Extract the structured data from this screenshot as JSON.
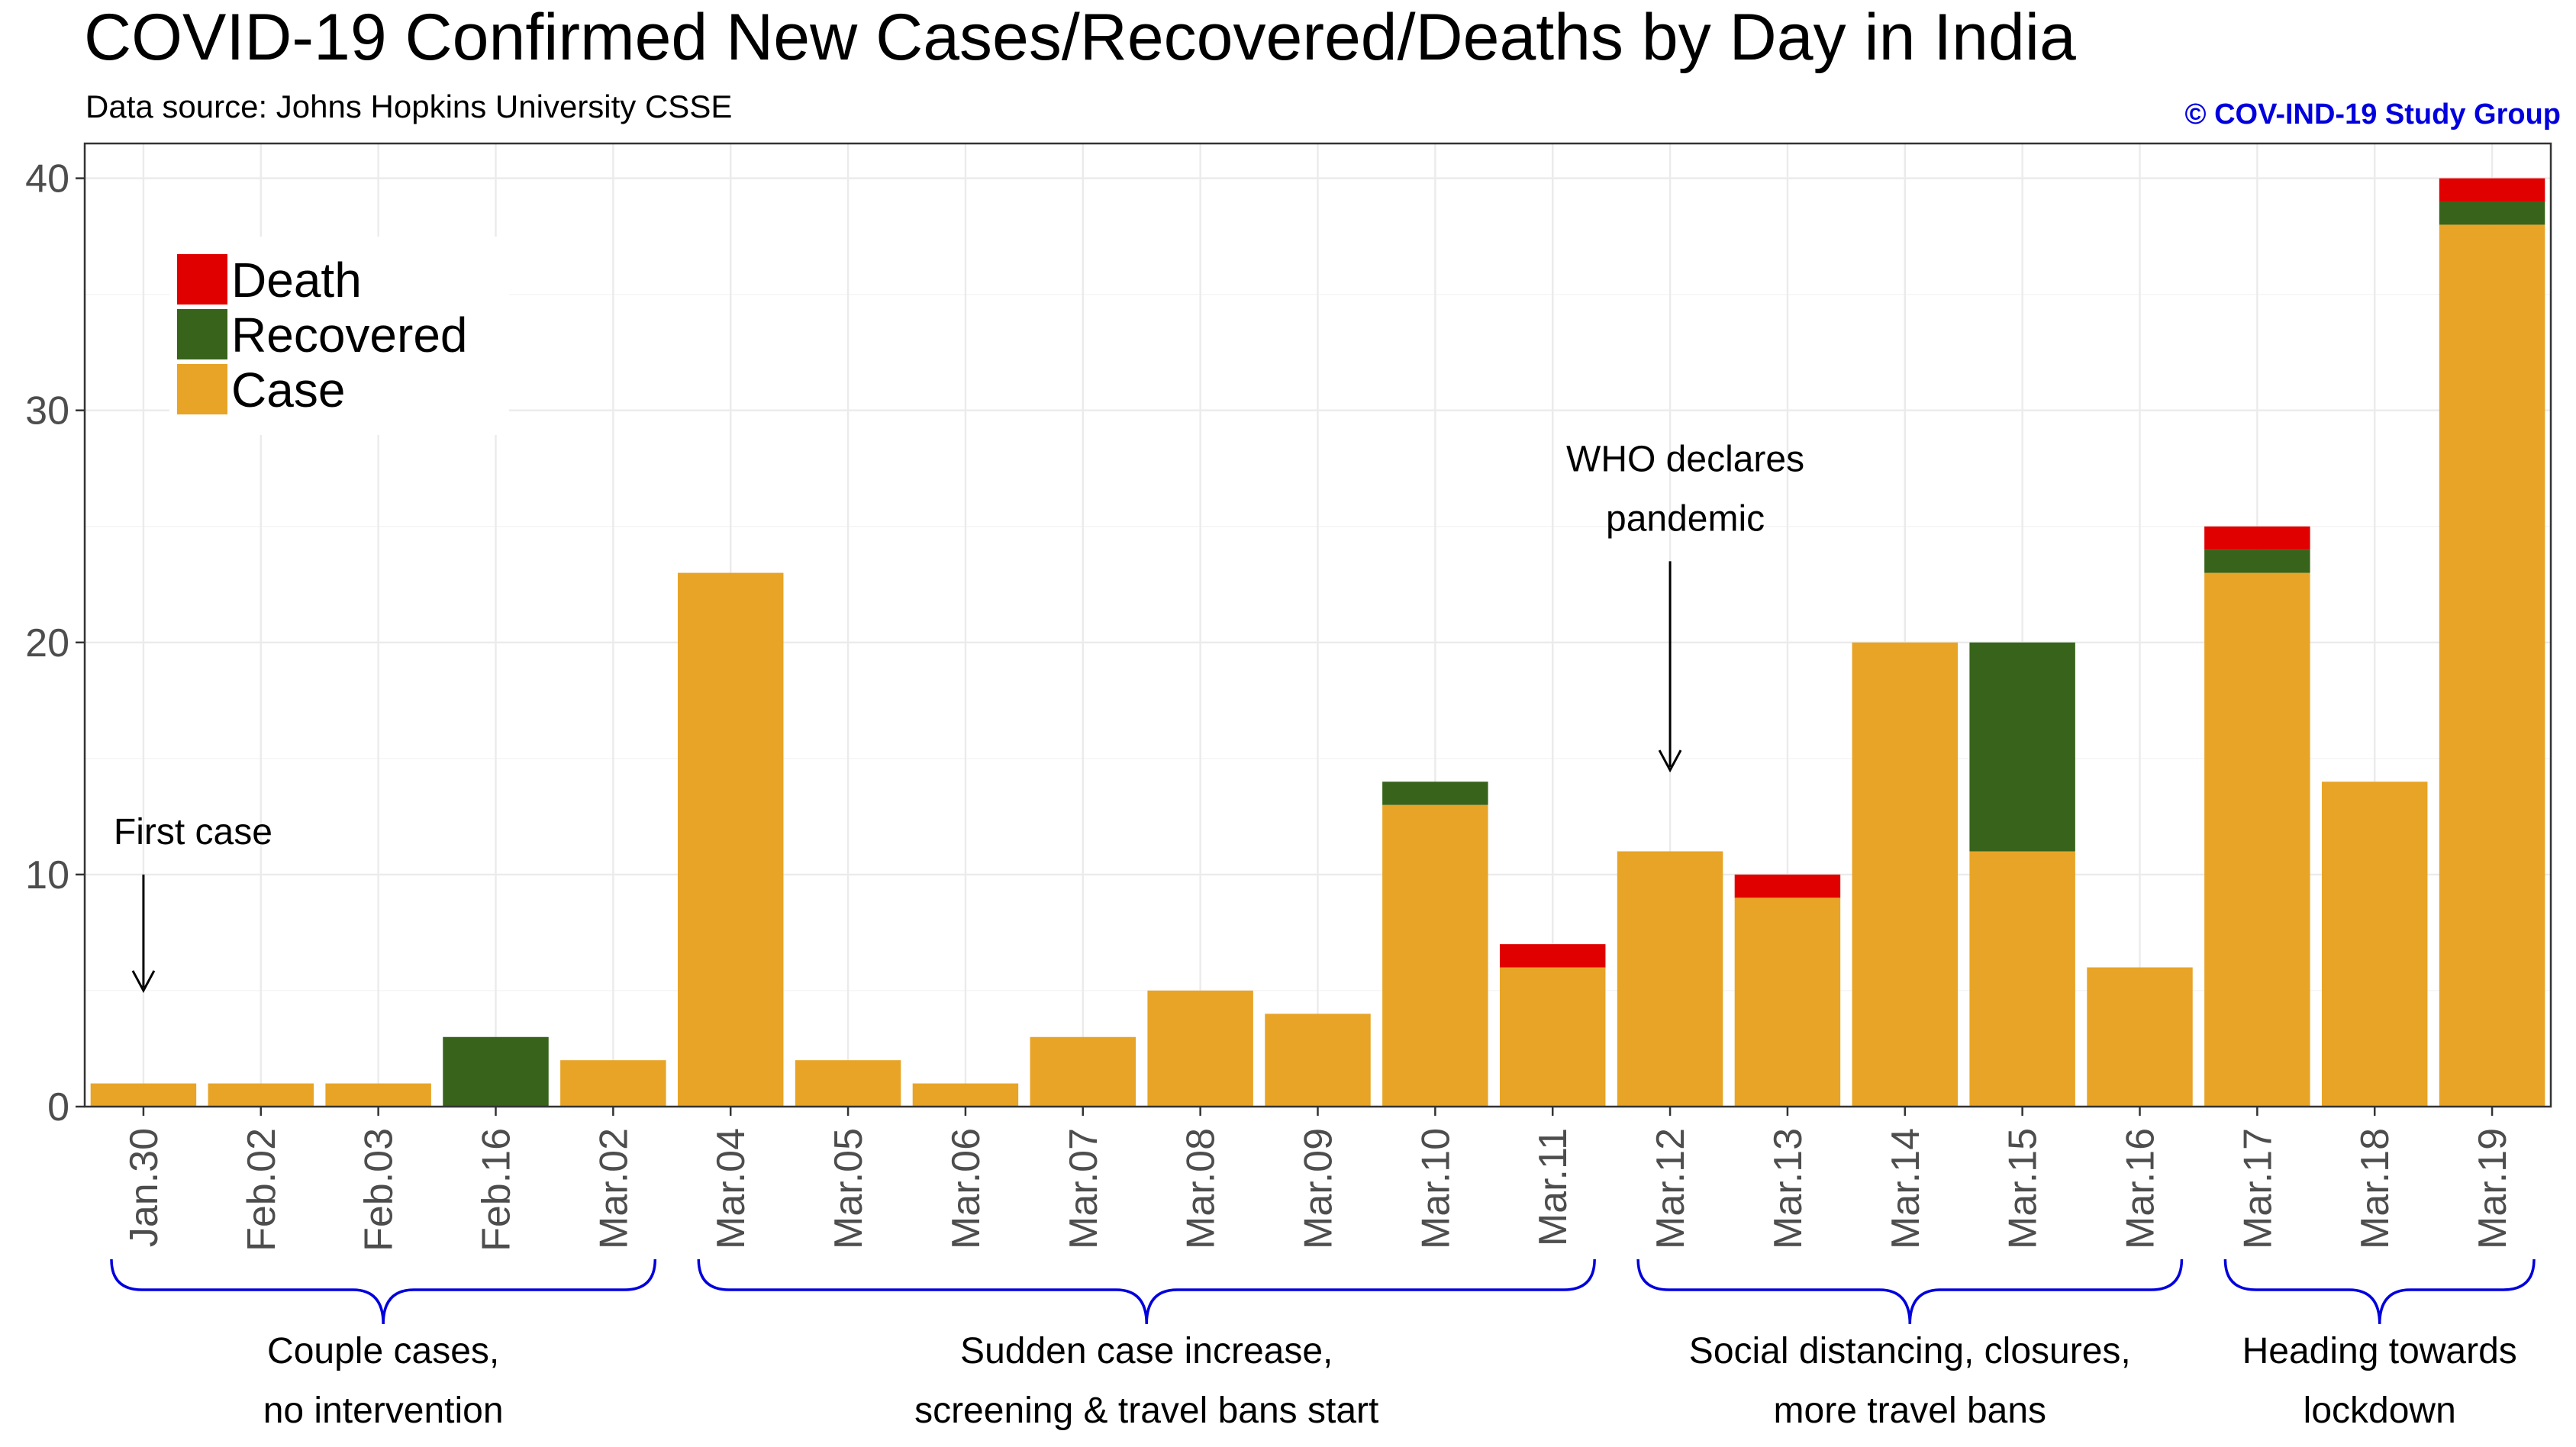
{
  "chart_data": {
    "type": "bar",
    "stacked": true,
    "title": "COVID-19 Confirmed New Cases/Recovered/Deaths by Day in India",
    "subtitle": "Data source: Johns Hopkins University CSSE",
    "credit": "© COV-IND-19 Study Group",
    "xlabel": "",
    "ylabel": "",
    "ylim": [
      0,
      41.5
    ],
    "yticks": [
      0,
      10,
      20,
      30,
      40
    ],
    "grid": true,
    "legend_position": "top-left",
    "categories": [
      "Jan.30",
      "Feb.02",
      "Feb.03",
      "Feb.16",
      "Mar.02",
      "Mar.04",
      "Mar.05",
      "Mar.06",
      "Mar.07",
      "Mar.08",
      "Mar.09",
      "Mar.10",
      "Mar.11",
      "Mar.12",
      "Mar.13",
      "Mar.14",
      "Mar.15",
      "Mar.16",
      "Mar.17",
      "Mar.18",
      "Mar.19"
    ],
    "series": [
      {
        "name": "Case",
        "color": "#E8A427",
        "values": [
          1,
          1,
          1,
          0,
          2,
          23,
          2,
          1,
          3,
          5,
          4,
          13,
          6,
          11,
          9,
          20,
          11,
          6,
          23,
          14,
          38
        ]
      },
      {
        "name": "Recovered",
        "color": "#38631A",
        "values": [
          0,
          0,
          0,
          3,
          0,
          0,
          0,
          0,
          0,
          0,
          0,
          1,
          0,
          0,
          0,
          0,
          9,
          0,
          1,
          0,
          1
        ]
      },
      {
        "name": "Death",
        "color": "#E00000",
        "values": [
          0,
          0,
          0,
          0,
          0,
          0,
          0,
          0,
          0,
          0,
          0,
          0,
          1,
          0,
          1,
          0,
          0,
          0,
          1,
          0,
          1
        ]
      }
    ],
    "legend_order": [
      "Death",
      "Recovered",
      "Case"
    ],
    "annotations": [
      {
        "category": "Jan.30",
        "lines": [
          "First case"
        ],
        "arrow_from": 10,
        "arrow_to": 5
      },
      {
        "category": "Mar.12",
        "lines": [
          "WHO declares",
          "pandemic"
        ],
        "arrow_from": 23.5,
        "arrow_to": 14.5
      }
    ],
    "groups": [
      {
        "from": 0,
        "to": 4,
        "lines": [
          "Couple cases,",
          "no intervention"
        ]
      },
      {
        "from": 5,
        "to": 12,
        "lines": [
          "Sudden case increase,",
          "screening & travel bans start"
        ]
      },
      {
        "from": 13,
        "to": 17,
        "lines": [
          "Social distancing, closures,",
          "more travel bans"
        ]
      },
      {
        "from": 18,
        "to": 20,
        "lines": [
          "Heading towards",
          "lockdown"
        ]
      }
    ],
    "brace_color": "#0000dd"
  }
}
